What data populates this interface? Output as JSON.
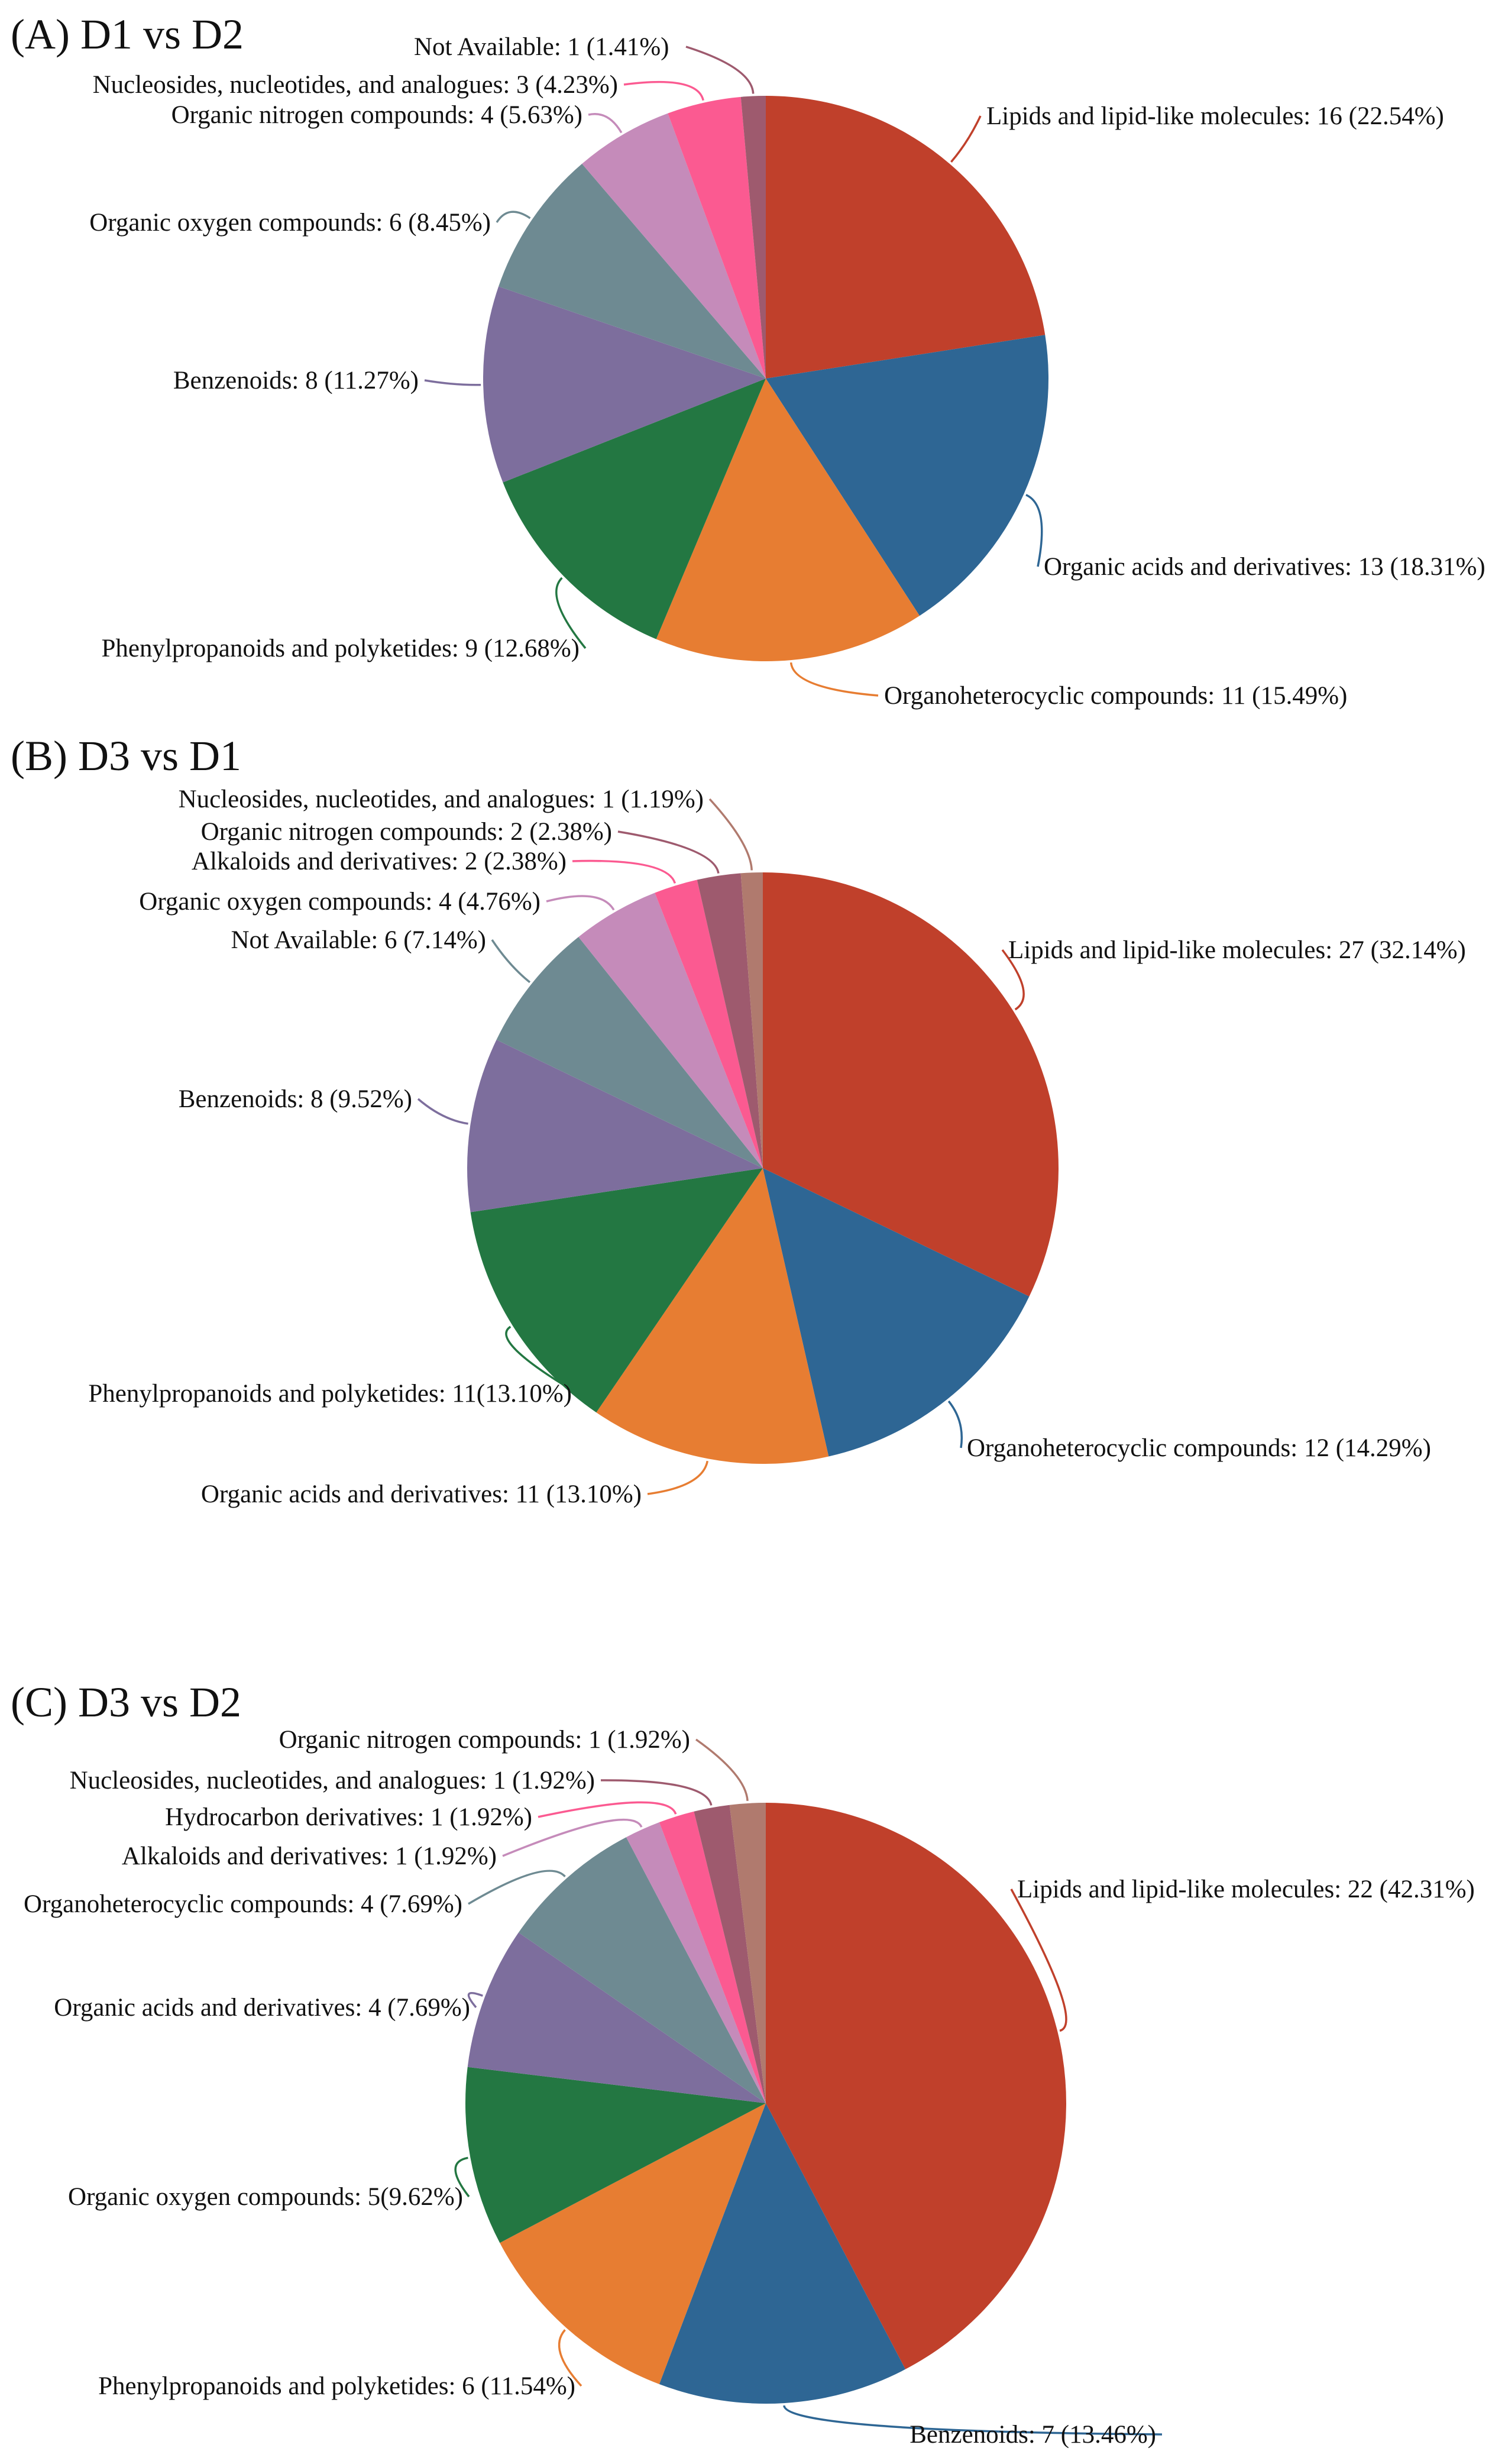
{
  "chart_data": [
    {
      "type": "pie",
      "panel_letter": "(A)",
      "title": "D1 vs D2",
      "slices": [
        {
          "name": "Lipids and lipid-like molecules",
          "value": 16,
          "label": "Lipids and lipid-like molecules: 16 (22.54%)",
          "color": "#C0402B"
        },
        {
          "name": "Organic acids and derivatives",
          "value": 13,
          "label": "Organic acids and derivatives: 13 (18.31%)",
          "color": "#2E6694"
        },
        {
          "name": "Organoheterocyclic compounds",
          "value": 11,
          "label": "Organoheterocyclic compounds: 11 (15.49%)",
          "color": "#E77D32"
        },
        {
          "name": "Phenylpropanoids and polyketides",
          "value": 9,
          "label": "Phenylpropanoids and polyketides: 9 (12.68%)",
          "color": "#237742"
        },
        {
          "name": "Benzenoids",
          "value": 8,
          "label": "Benzenoids: 8 (11.27%)",
          "color": "#7D6E9D"
        },
        {
          "name": "Organic oxygen compounds",
          "value": 6,
          "label": "Organic oxygen compounds: 6 (8.45%)",
          "color": "#6E8A92"
        },
        {
          "name": "Organic nitrogen compounds",
          "value": 4,
          "label": "Organic nitrogen compounds: 4 (5.63%)",
          "color": "#C58BBA"
        },
        {
          "name": "Nucleosides, nucleotides, and analogues",
          "value": 3,
          "label": "Nucleosides, nucleotides, and analogues: 3 (4.23%)",
          "color": "#FB5A91"
        },
        {
          "name": "Not Available",
          "value": 1,
          "label": "Not Available: 1 (1.41%)",
          "color": "#9E5A6E"
        }
      ]
    },
    {
      "type": "pie",
      "panel_letter": "(B)",
      "title": "D3 vs D1",
      "slices": [
        {
          "name": "Lipids and lipid-like molecules",
          "value": 27,
          "label": "Lipids and lipid-like molecules: 27 (32.14%)",
          "color": "#C0402B"
        },
        {
          "name": "Organoheterocyclic compounds",
          "value": 12,
          "label": "Organoheterocyclic compounds: 12 (14.29%)",
          "color": "#2E6694"
        },
        {
          "name": "Organic acids and derivatives",
          "value": 11,
          "label": "Organic acids and derivatives: 11 (13.10%)",
          "color": "#E77D32"
        },
        {
          "name": "Phenylpropanoids and polyketides",
          "value": 11,
          "label": "Phenylpropanoids and polyketides: 11(13.10%)",
          "color": "#237742"
        },
        {
          "name": "Benzenoids",
          "value": 8,
          "label": "Benzenoids: 8 (9.52%)",
          "color": "#7D6E9D"
        },
        {
          "name": "Not Available",
          "value": 6,
          "label": "Not Available: 6 (7.14%)",
          "color": "#6E8A92"
        },
        {
          "name": "Organic oxygen compounds",
          "value": 4,
          "label": "Organic oxygen compounds: 4 (4.76%)",
          "color": "#C58BBA"
        },
        {
          "name": "Alkaloids and derivatives",
          "value": 2,
          "label": "Alkaloids and derivatives: 2 (2.38%)",
          "color": "#FB5A91"
        },
        {
          "name": "Organic nitrogen compounds",
          "value": 2,
          "label": "Organic nitrogen compounds: 2 (2.38%)",
          "color": "#9E5A6E"
        },
        {
          "name": "Nucleosides, nucleotides, and analogues",
          "value": 1,
          "label": "Nucleosides, nucleotides, and analogues: 1 (1.19%)",
          "color": "#B07A6E"
        }
      ]
    },
    {
      "type": "pie",
      "panel_letter": "(C)",
      "title": "D3 vs D2",
      "slices": [
        {
          "name": "Lipids and lipid-like molecules",
          "value": 22,
          "label": "Lipids and lipid-like molecules: 22 (42.31%)",
          "color": "#C0402B"
        },
        {
          "name": "Benzenoids",
          "value": 7,
          "label": "Benzenoids: 7 (13.46%)",
          "color": "#2E6694"
        },
        {
          "name": "Phenylpropanoids and polyketides",
          "value": 6,
          "label": "Phenylpropanoids and polyketides: 6 (11.54%)",
          "color": "#E77D32"
        },
        {
          "name": "Organic oxygen compounds",
          "value": 5,
          "label": "Organic oxygen compounds: 5(9.62%)",
          "color": "#237742"
        },
        {
          "name": "Organic acids and derivatives",
          "value": 4,
          "label": "Organic acids and derivatives: 4 (7.69%)",
          "color": "#7D6E9D"
        },
        {
          "name": "Organoheterocyclic compounds",
          "value": 4,
          "label": "Organoheterocyclic compounds: 4 (7.69%)",
          "color": "#6E8A92"
        },
        {
          "name": "Alkaloids and derivatives",
          "value": 1,
          "label": "Alkaloids and derivatives: 1 (1.92%)",
          "color": "#C58BBA"
        },
        {
          "name": "Hydrocarbon derivatives",
          "value": 1,
          "label": "Hydrocarbon derivatives: 1 (1.92%)",
          "color": "#FB5A91"
        },
        {
          "name": "Nucleosides, nucleotides, and analogues",
          "value": 1,
          "label": "Nucleosides, nucleotides, and analogues: 1 (1.92%)",
          "color": "#9E5A6E"
        },
        {
          "name": "Organic nitrogen compounds",
          "value": 1,
          "label": "Organic nitrogen compounds: 1 (1.92%)",
          "color": "#B07A6E"
        }
      ]
    }
  ]
}
